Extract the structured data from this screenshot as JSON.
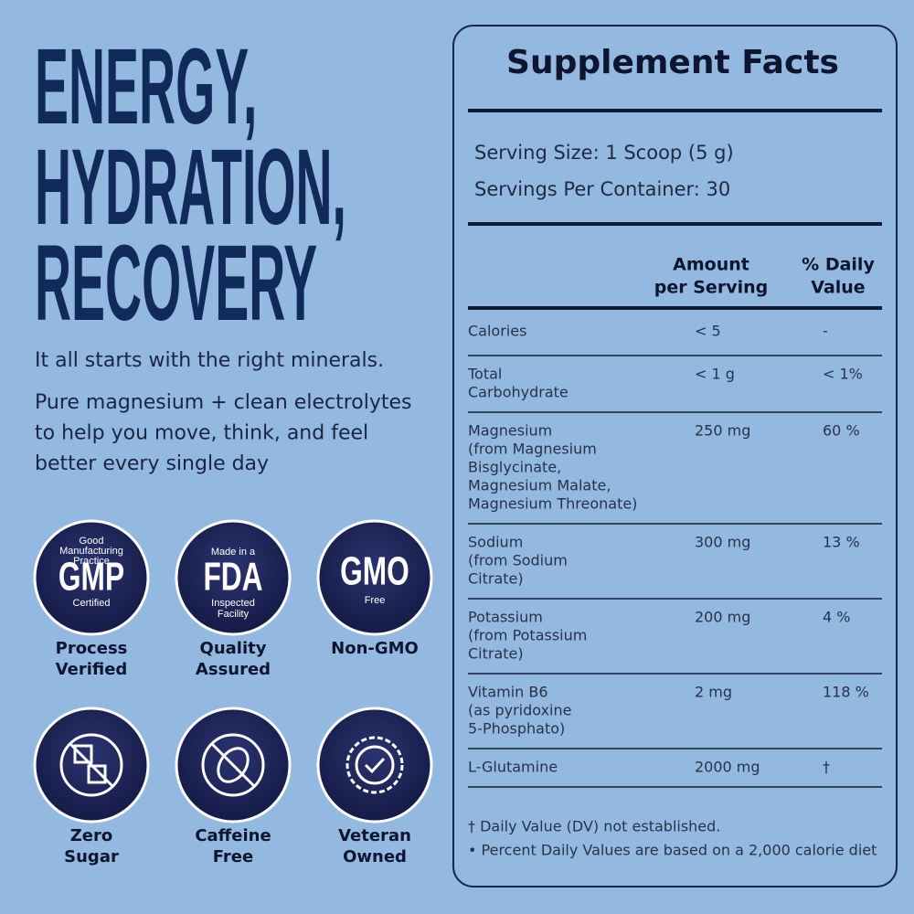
{
  "headline": [
    "ENERGY,",
    "HYDRATION,",
    "RECOVERY"
  ],
  "tagline": "It all starts with the right minerals.",
  "description": [
    "Pure magnesium + clean electrolytes",
    "to help you move, think, and feel",
    "better every single day"
  ],
  "badges": [
    {
      "icon_text": [
        "Good",
        "Manufacturing",
        "Practice"
      ],
      "icon_main": "GMP",
      "icon_sub": [
        "Certified"
      ],
      "label": [
        "Process",
        "Verified"
      ]
    },
    {
      "icon_text": [
        "Made in a"
      ],
      "icon_main": "FDA",
      "icon_sub": [
        "Inspected",
        "Facility"
      ],
      "label": [
        "Quality",
        "Assured"
      ]
    },
    {
      "icon_text": [],
      "icon_main": "GMO",
      "icon_sub": [
        "Free"
      ],
      "label": [
        "Non-GMO"
      ]
    },
    {
      "icon_text": [],
      "icon_main": null,
      "icon_sub": [],
      "label": [
        "Zero",
        "Sugar"
      ]
    },
    {
      "icon_text": [],
      "icon_main": null,
      "icon_sub": [],
      "label": [
        "Caffeine",
        "Free"
      ]
    },
    {
      "icon_text": [],
      "icon_main": null,
      "icon_sub": [],
      "label": [
        "Veteran",
        "Owned"
      ]
    }
  ],
  "facts": {
    "title": "Supplement Facts",
    "serving_size": "Serving Size: 1 Scoop (5 g)",
    "servings_per_container": "Servings Per Container: 30",
    "columns": {
      "amount": [
        "Amount",
        "per Serving"
      ],
      "daily_value": [
        "% Daily",
        "Value"
      ]
    },
    "rows": [
      {
        "name": [
          "Calories"
        ],
        "amount": "< 5",
        "dv": "-"
      },
      {
        "name": [
          "Total",
          "Carbohydrate"
        ],
        "amount": "< 1 g",
        "dv": "< 1%"
      },
      {
        "name": [
          "Magnesium",
          "(from Magnesium",
          "Bisglycinate,",
          "Magnesium Malate,",
          "Magnesium Threonate)"
        ],
        "amount": "250 mg",
        "dv": "60 %"
      },
      {
        "name": [
          "Sodium",
          "(from Sodium",
          "Citrate)"
        ],
        "amount": "300 mg",
        "dv": "13 %"
      },
      {
        "name": [
          "Potassium",
          "(from Potassium",
          "Citrate)"
        ],
        "amount": "200 mg",
        "dv": "4 %"
      },
      {
        "name": [
          "Vitamin B6",
          "(as pyridoxine",
          "5-Phosphato)"
        ],
        "amount": "2 mg",
        "dv": "118 %"
      },
      {
        "name": [
          "L-Glutamine"
        ],
        "amount": "2000 mg",
        "dv": "†"
      }
    ],
    "footnotes": [
      "† Daily Value (DV) not established.",
      "• Percent Daily Values are based on a 2,000 calorie diet"
    ]
  }
}
